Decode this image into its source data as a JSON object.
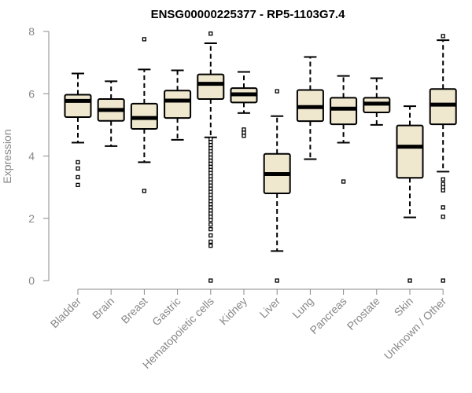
{
  "chart_data": {
    "type": "boxplot",
    "title": "ENSG00000225377 - RP5-1103G7.4",
    "xlabel": "",
    "ylabel": "Expression",
    "ylim": [
      0,
      8
    ],
    "yticks": [
      0,
      2,
      4,
      6,
      8
    ],
    "grid": false,
    "box_fill": "#EFE8CF",
    "categories": [
      "Bladder",
      "Brain",
      "Breast",
      "Gastric",
      "Hematopoietic cells",
      "Kidney",
      "Liver",
      "Lung",
      "Pancreas",
      "Prostate",
      "Skin",
      "Unknown / Other"
    ],
    "boxes": [
      {
        "whisker_low": 4.43,
        "q1": 5.25,
        "median": 5.77,
        "q3": 5.97,
        "whisker_high": 6.65,
        "outliers": [
          3.8,
          3.6,
          3.32,
          3.07
        ]
      },
      {
        "whisker_low": 4.32,
        "q1": 5.13,
        "median": 5.48,
        "q3": 5.83,
        "whisker_high": 6.4,
        "outliers": []
      },
      {
        "whisker_low": 3.8,
        "q1": 4.87,
        "median": 5.22,
        "q3": 5.68,
        "whisker_high": 6.78,
        "outliers": [
          7.75,
          2.88
        ]
      },
      {
        "whisker_low": 4.52,
        "q1": 5.22,
        "median": 5.78,
        "q3": 6.1,
        "whisker_high": 6.75,
        "outliers": []
      },
      {
        "whisker_low": 4.6,
        "q1": 5.83,
        "median": 6.32,
        "q3": 6.62,
        "whisker_high": 7.62,
        "outliers": [
          7.93,
          4.55,
          4.45,
          4.35,
          4.25,
          4.15,
          4.05,
          3.95,
          3.85,
          3.75,
          3.65,
          3.55,
          3.45,
          3.35,
          3.25,
          3.15,
          3.05,
          2.95,
          2.85,
          2.75,
          2.65,
          2.55,
          2.45,
          2.35,
          2.25,
          2.15,
          2.05,
          1.95,
          1.8,
          1.65,
          1.45,
          1.25,
          1.12,
          0.0
        ]
      },
      {
        "whisker_low": 5.38,
        "q1": 5.72,
        "median": 5.98,
        "q3": 6.18,
        "whisker_high": 6.7,
        "outliers": [
          4.85,
          4.75,
          4.65
        ]
      },
      {
        "whisker_low": 0.95,
        "q1": 2.8,
        "median": 3.42,
        "q3": 4.07,
        "whisker_high": 5.28,
        "outliers": [
          6.08,
          0.0
        ]
      },
      {
        "whisker_low": 3.9,
        "q1": 5.12,
        "median": 5.57,
        "q3": 6.12,
        "whisker_high": 7.18,
        "outliers": []
      },
      {
        "whisker_low": 4.43,
        "q1": 5.02,
        "median": 5.52,
        "q3": 5.87,
        "whisker_high": 6.57,
        "outliers": [
          3.18
        ]
      },
      {
        "whisker_low": 5.0,
        "q1": 5.4,
        "median": 5.68,
        "q3": 5.87,
        "whisker_high": 6.5,
        "outliers": []
      },
      {
        "whisker_low": 2.03,
        "q1": 3.3,
        "median": 4.3,
        "q3": 4.98,
        "whisker_high": 5.6,
        "outliers": [
          0.0
        ]
      },
      {
        "whisker_low": 3.5,
        "q1": 5.02,
        "median": 5.65,
        "q3": 6.15,
        "whisker_high": 7.72,
        "outliers": [
          7.85,
          3.25,
          3.1,
          3.0,
          2.9,
          2.35,
          2.05,
          0.0
        ]
      }
    ]
  }
}
